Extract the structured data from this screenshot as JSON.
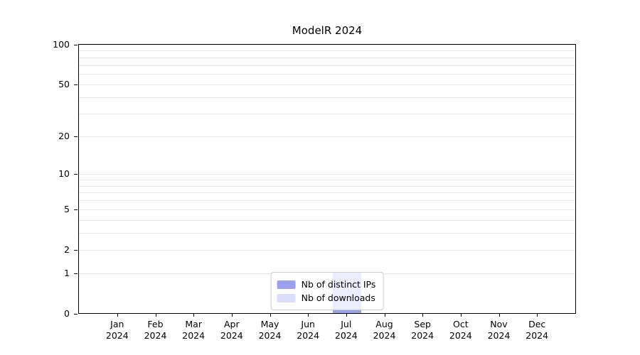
{
  "chart_data": {
    "type": "bar",
    "title": "ModelR 2024",
    "x_year": "2024",
    "categories": [
      "Jan",
      "Feb",
      "Mar",
      "Apr",
      "May",
      "Jun",
      "Jul",
      "Aug",
      "Sep",
      "Oct",
      "Nov",
      "Dec"
    ],
    "series": [
      {
        "name": "Nb of distinct IPs",
        "color": "#9a9fee",
        "values": [
          0,
          0,
          0,
          0,
          0,
          0,
          1,
          0,
          0,
          0,
          0,
          0
        ]
      },
      {
        "name": "Nb of downloads",
        "color": "#dcddfb",
        "values": [
          0,
          0,
          0,
          0,
          0,
          0,
          1,
          0,
          0,
          0,
          0,
          0
        ]
      }
    ],
    "y_scale": "log1p",
    "y_ticks": [
      0,
      1,
      2,
      5,
      10,
      20,
      50,
      100
    ],
    "y_gridlines": [
      1,
      2,
      3,
      4,
      5,
      6,
      7,
      8,
      9,
      10,
      20,
      30,
      40,
      50,
      60,
      70,
      80,
      90,
      100
    ],
    "ylim": [
      0,
      100
    ],
    "grid": "horizontal-minor",
    "legend_position": "bottom-center",
    "colors": {
      "axis": "#000000",
      "gridline": "#e7e7e7",
      "legend_border": "#cccccc"
    }
  }
}
